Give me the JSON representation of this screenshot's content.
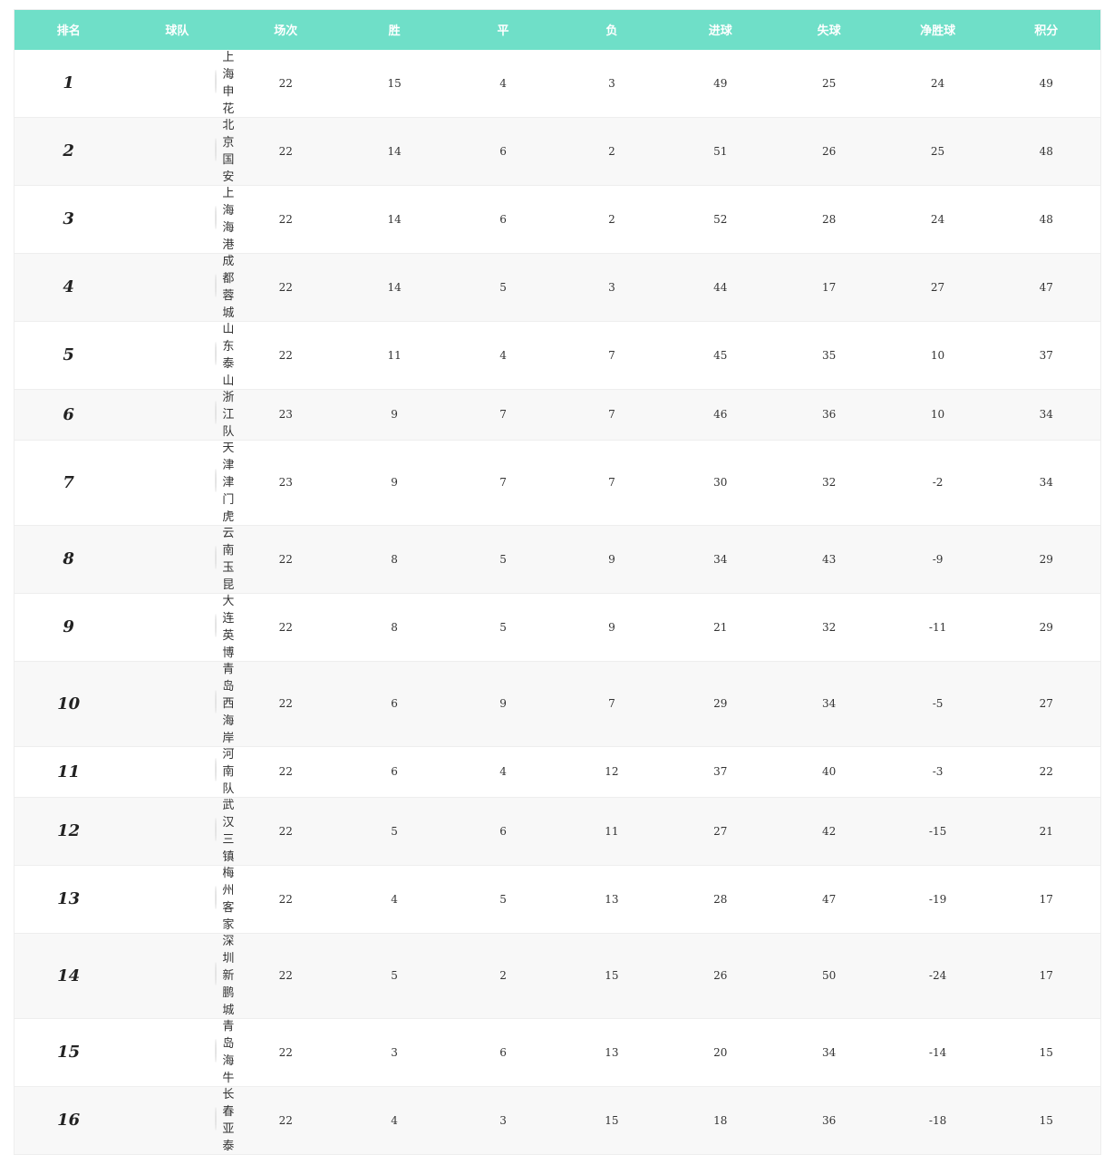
{
  "headers": [
    "排名",
    "球队",
    "场次",
    "胜",
    "平",
    "负",
    "进球",
    "失球",
    "净胜球",
    "积分"
  ],
  "accent": "#6fdfc8",
  "rows": [
    {
      "rank": "1",
      "team": "上海申花",
      "logo_color": "#2b5fb4",
      "p": "22",
      "w": "15",
      "d": "4",
      "l": "3",
      "gf": "49",
      "ga": "25",
      "gd": "24",
      "pts": "49"
    },
    {
      "rank": "2",
      "team": "北京国安",
      "logo_color": "#2e8b2e",
      "p": "22",
      "w": "14",
      "d": "6",
      "l": "2",
      "gf": "51",
      "ga": "26",
      "gd": "25",
      "pts": "48"
    },
    {
      "rank": "3",
      "team": "上海海港",
      "logo_color": "#d42a1e",
      "p": "22",
      "w": "14",
      "d": "6",
      "l": "2",
      "gf": "52",
      "ga": "28",
      "gd": "24",
      "pts": "48"
    },
    {
      "rank": "4",
      "team": "成都蓉城",
      "logo_color": "#c8102e",
      "p": "22",
      "w": "14",
      "d": "5",
      "l": "3",
      "gf": "44",
      "ga": "17",
      "gd": "27",
      "pts": "47"
    },
    {
      "rank": "5",
      "team": "山东泰山",
      "logo_color": "#f08a1c",
      "p": "22",
      "w": "11",
      "d": "4",
      "l": "7",
      "gf": "45",
      "ga": "35",
      "gd": "10",
      "pts": "37"
    },
    {
      "rank": "6",
      "team": "浙江队",
      "logo_color": "#1e6b3a",
      "p": "23",
      "w": "9",
      "d": "7",
      "l": "7",
      "gf": "46",
      "ga": "36",
      "gd": "10",
      "pts": "34"
    },
    {
      "rank": "7",
      "team": "天津津门虎",
      "logo_color": "#3a8fd6",
      "p": "23",
      "w": "9",
      "d": "7",
      "l": "7",
      "gf": "30",
      "ga": "32",
      "gd": "-2",
      "pts": "34"
    },
    {
      "rank": "8",
      "team": "云南玉昆",
      "logo_color": "#1f4a8a",
      "p": "22",
      "w": "8",
      "d": "5",
      "l": "9",
      "gf": "34",
      "ga": "43",
      "gd": "-9",
      "pts": "29"
    },
    {
      "rank": "9",
      "team": "大连英博",
      "logo_color": "#4a86c8",
      "p": "22",
      "w": "8",
      "d": "5",
      "l": "9",
      "gf": "21",
      "ga": "32",
      "gd": "-11",
      "pts": "29"
    },
    {
      "rank": "10",
      "team": "青岛西海岸",
      "logo_color": "#e0402a",
      "p": "22",
      "w": "6",
      "d": "9",
      "l": "7",
      "gf": "29",
      "ga": "34",
      "gd": "-5",
      "pts": "27"
    },
    {
      "rank": "11",
      "team": "河南队",
      "logo_color": "#2a9a5a",
      "p": "22",
      "w": "6",
      "d": "4",
      "l": "12",
      "gf": "37",
      "ga": "40",
      "gd": "-3",
      "pts": "22"
    },
    {
      "rank": "12",
      "team": "武汉三镇",
      "logo_color": "#2a3f8f",
      "p": "22",
      "w": "5",
      "d": "6",
      "l": "11",
      "gf": "27",
      "ga": "42",
      "gd": "-15",
      "pts": "21"
    },
    {
      "rank": "13",
      "team": "梅州客家",
      "logo_color": "#e07a2a",
      "p": "22",
      "w": "4",
      "d": "5",
      "l": "13",
      "gf": "28",
      "ga": "47",
      "gd": "-19",
      "pts": "17"
    },
    {
      "rank": "14",
      "team": "深圳新鹏城",
      "logo_color": "#2a3f6f",
      "p": "22",
      "w": "5",
      "d": "2",
      "l": "15",
      "gf": "26",
      "ga": "50",
      "gd": "-24",
      "pts": "17"
    },
    {
      "rank": "15",
      "team": "青岛海牛",
      "logo_color": "#1f3a6f",
      "p": "22",
      "w": "3",
      "d": "6",
      "l": "13",
      "gf": "20",
      "ga": "34",
      "gd": "-14",
      "pts": "15"
    },
    {
      "rank": "16",
      "team": "长春亚泰",
      "logo_color": "#d42a2a",
      "p": "22",
      "w": "4",
      "d": "3",
      "l": "15",
      "gf": "18",
      "ga": "36",
      "gd": "-18",
      "pts": "15"
    }
  ]
}
